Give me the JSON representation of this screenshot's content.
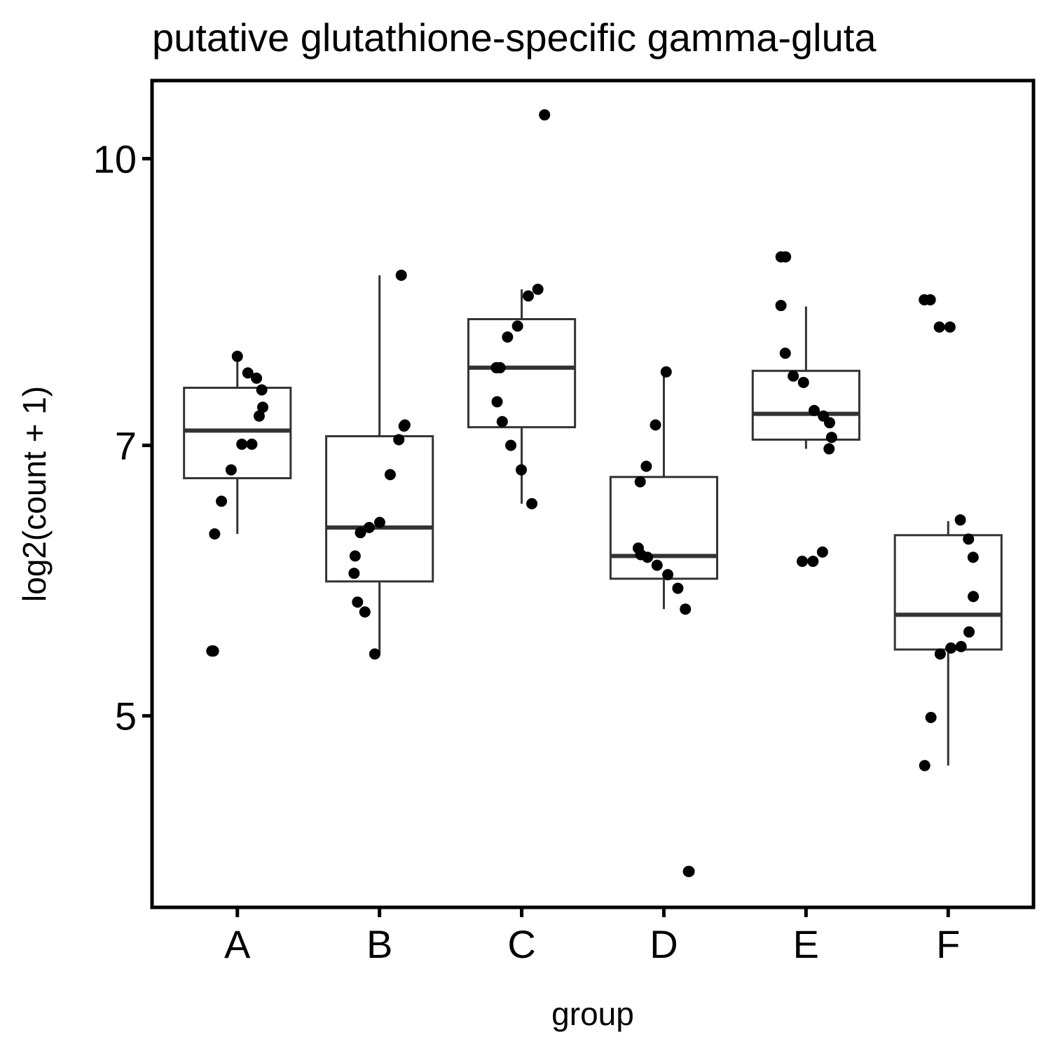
{
  "chart_data": {
    "type": "boxplot",
    "title": "putative glutathione-specific gamma-gluta",
    "x_label": "group",
    "y_label": "log2(count + 1)",
    "y_log_scale": true,
    "ylim": [
      3.94,
      11.02
    ],
    "yticks": [
      5,
      7,
      10
    ],
    "categories": [
      "A",
      "B",
      "C",
      "D",
      "E",
      "F"
    ],
    "points": [
      [
        7.82,
        7.66,
        7.61,
        7.5,
        7.34,
        7.26,
        7.01,
        7.01,
        6.79,
        6.53,
        6.27,
        5.42,
        5.42
      ],
      [
        8.65,
        7.18,
        7.17,
        7.05,
        6.75,
        6.36,
        6.32,
        6.28,
        6.1,
        5.97,
        5.76,
        5.69,
        5.4
      ],
      [
        10.56,
        8.5,
        8.43,
        8.12,
        8.01,
        7.71,
        7.71,
        7.39,
        7.21,
        7.0,
        6.79,
        6.51
      ],
      [
        7.67,
        7.18,
        6.82,
        6.69,
        6.16,
        6.11,
        6.09,
        6.03,
        5.96,
        5.86,
        5.71,
        4.12,
        4.12
      ],
      [
        8.85,
        8.85,
        8.33,
        7.85,
        7.63,
        7.57,
        7.31,
        7.26,
        7.2,
        7.07,
        6.97,
        6.13,
        6.06,
        6.06
      ],
      [
        8.39,
        8.39,
        8.11,
        8.11,
        6.38,
        6.23,
        6.09,
        5.8,
        5.55,
        5.45,
        5.44,
        5.4,
        4.99,
        4.7
      ]
    ],
    "boxes": [
      {
        "lower_whisker": 6.27,
        "q1": 6.72,
        "median": 7.13,
        "q3": 7.52,
        "upper_whisker": 7.82
      },
      {
        "lower_whisker": 5.4,
        "q1": 5.91,
        "median": 6.32,
        "q3": 7.08,
        "upper_whisker": 8.65
      },
      {
        "lower_whisker": 6.51,
        "q1": 7.16,
        "median": 7.71,
        "q3": 8.19,
        "upper_whisker": 8.5
      },
      {
        "lower_whisker": 5.71,
        "q1": 5.93,
        "median": 6.1,
        "q3": 6.73,
        "upper_whisker": 7.67
      },
      {
        "lower_whisker": 6.97,
        "q1": 7.05,
        "median": 7.28,
        "q3": 7.68,
        "upper_whisker": 8.32
      },
      {
        "lower_whisker": 4.7,
        "q1": 5.43,
        "median": 5.67,
        "q3": 6.26,
        "upper_whisker": 6.37
      }
    ],
    "point_color": "#000000",
    "box_color": "#333333"
  }
}
